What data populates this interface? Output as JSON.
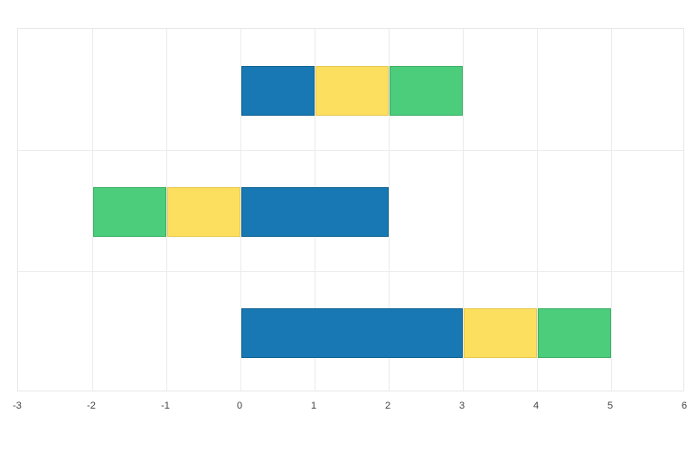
{
  "chart_data": {
    "type": "bar",
    "orientation": "horizontal",
    "barmode": "relative",
    "title": "",
    "xlabel": "",
    "ylabel": "",
    "xlim": [
      -3,
      6
    ],
    "x_ticks": [
      -3,
      -2,
      -1,
      0,
      1,
      2,
      3,
      4,
      5,
      6
    ],
    "x_tick_labels": [
      "-3",
      "-2",
      "-1",
      "0",
      "1",
      "2",
      "3",
      "4",
      "5",
      "6"
    ],
    "categories": [
      "row-top",
      "row-middle",
      "row-bottom"
    ],
    "category_labels_visible": false,
    "series": [
      {
        "name": "blue",
        "color": "#1778b4",
        "border_color": "#116391",
        "values": [
          1,
          2,
          3
        ]
      },
      {
        "name": "yellow",
        "color": "#fcdf5e",
        "border_color": "#e6c94c",
        "values": [
          1,
          -1,
          1
        ]
      },
      {
        "name": "green",
        "color": "#4bcd7c",
        "border_color": "#3fae68",
        "values": [
          1,
          -1,
          1
        ]
      }
    ],
    "segments_note": "values listed per category top-to-bottom; positives stack right of 0, negatives stack left of 0",
    "grid": true,
    "legend": false
  },
  "style": {
    "plot_background": "#ffffff",
    "page_background": "#ffffff",
    "grid_color": "#ececec",
    "plot_border_color": "#e8e8e8",
    "tick_label_color": "#444444"
  }
}
